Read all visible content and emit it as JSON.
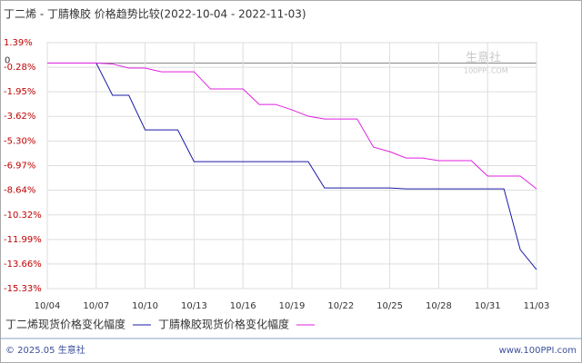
{
  "chart_data": {
    "type": "line",
    "title": "丁二烯 - 丁腈橡胶 价格趋势比较(2022-10-04 - 2022-11-03)",
    "categories": [
      "10/04",
      null,
      null,
      "10/07",
      null,
      null,
      "10/10",
      null,
      null,
      "10/13",
      null,
      null,
      "10/16",
      null,
      null,
      "10/19",
      null,
      null,
      "10/22",
      null,
      null,
      "10/25",
      null,
      null,
      "10/28",
      null,
      null,
      "10/31",
      null,
      null,
      "11/03"
    ],
    "series": [
      {
        "name": "丁二烯现货价格变化幅度",
        "color": "#1a1aa6",
        "values": [
          0,
          0,
          0,
          0,
          -2.19,
          -2.19,
          -4.54,
          -4.54,
          -4.54,
          -6.7,
          -6.7,
          -6.7,
          -6.7,
          -6.7,
          -6.7,
          -6.7,
          -6.7,
          -8.49,
          -8.49,
          -8.49,
          -8.49,
          -8.49,
          -8.55,
          -8.55,
          -8.55,
          -8.55,
          -8.55,
          -8.55,
          -8.55,
          -12.68,
          -14.04
        ]
      },
      {
        "name": "丁腈橡胶现货价格变化幅度",
        "color": "#e020e0",
        "values": [
          0,
          0,
          0,
          0,
          -0.06,
          -0.34,
          -0.34,
          -0.59,
          -0.59,
          -0.59,
          -1.76,
          -1.76,
          -1.76,
          -2.81,
          -2.81,
          -3.18,
          -3.61,
          -3.8,
          -3.8,
          -3.8,
          -5.71,
          -6.02,
          -6.45,
          -6.45,
          -6.63,
          -6.63,
          -6.63,
          -7.68,
          -7.68,
          -7.68,
          -8.55
        ]
      }
    ],
    "ylim": [
      -15.33,
      1.39
    ],
    "yticks": [
      {
        "value": 1.39,
        "label": "1.39%"
      },
      {
        "value": -0.28,
        "label": "-0.28%"
      },
      {
        "value": -1.95,
        "label": "-1.95%"
      },
      {
        "value": -3.62,
        "label": "-3.62%"
      },
      {
        "value": -5.3,
        "label": "-5.30%"
      },
      {
        "value": -6.97,
        "label": "-6.97%"
      },
      {
        "value": -8.64,
        "label": "-8.64%"
      },
      {
        "value": -10.32,
        "label": "-10.32%"
      },
      {
        "value": -11.99,
        "label": "-11.99%"
      },
      {
        "value": -13.66,
        "label": "-13.66%"
      },
      {
        "value": -15.33,
        "label": "-15.33%"
      }
    ],
    "zero_line": 0,
    "grid": true,
    "watermark": {
      "name": "生意社",
      "site": "100PPI.COM"
    },
    "footer": {
      "left": "© 2025.05 生意社",
      "right": "www.100PPI.com"
    }
  }
}
